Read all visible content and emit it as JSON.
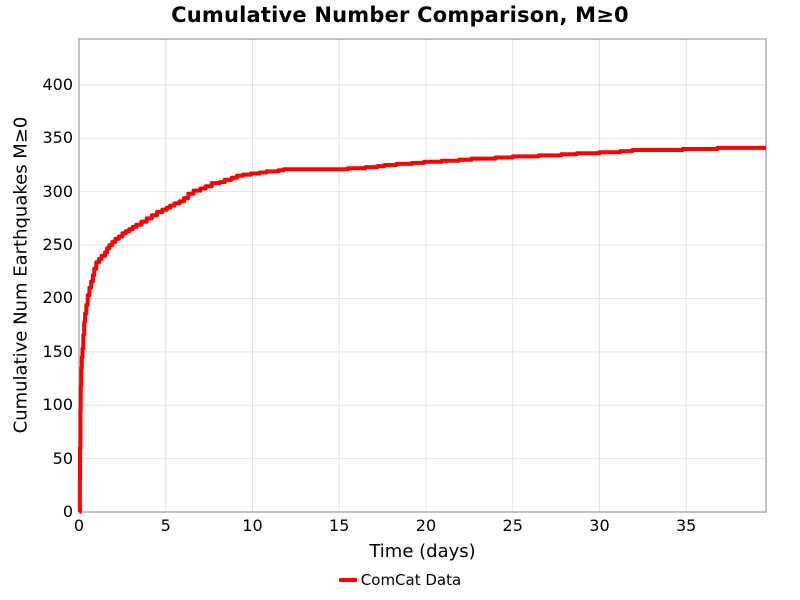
{
  "title": "Cumulative Number Comparison, M≥0",
  "colors": {
    "line": "#ff0000",
    "grid": "#e4e4e4",
    "spine": "#9b9b9b",
    "text": "#000000",
    "background": "#ffffff"
  },
  "chart_data": {
    "type": "line",
    "title": "Cumulative Number Comparison, M≥0",
    "xlabel": "Time (days)",
    "ylabel": "Cumulative Num Earthquakes M≥0",
    "xlim": [
      0,
      39.6
    ],
    "ylim": [
      0,
      443
    ],
    "xticks": [
      0,
      5,
      10,
      15,
      20,
      25,
      30,
      35
    ],
    "yticks": [
      0,
      50,
      100,
      150,
      200,
      250,
      300,
      350,
      400
    ],
    "grid": true,
    "legend_position": "bottom-center",
    "series": [
      {
        "name": "ComCat Data",
        "color": "#ff0000",
        "style": "step-after",
        "line_width": 4,
        "points": [
          [
            0.03,
            0
          ],
          [
            0.05,
            30
          ],
          [
            0.06,
            60
          ],
          [
            0.08,
            95
          ],
          [
            0.1,
            118
          ],
          [
            0.13,
            135
          ],
          [
            0.16,
            145
          ],
          [
            0.2,
            153
          ],
          [
            0.25,
            166
          ],
          [
            0.3,
            178
          ],
          [
            0.35,
            186
          ],
          [
            0.42,
            194
          ],
          [
            0.5,
            203
          ],
          [
            0.6,
            210
          ],
          [
            0.7,
            216
          ],
          [
            0.8,
            222
          ],
          [
            0.88,
            228
          ],
          [
            1.0,
            234
          ],
          [
            1.15,
            237
          ],
          [
            1.3,
            240
          ],
          [
            1.5,
            243
          ],
          [
            1.62,
            247
          ],
          [
            1.75,
            250
          ],
          [
            1.92,
            253
          ],
          [
            2.1,
            256
          ],
          [
            2.3,
            258
          ],
          [
            2.5,
            261
          ],
          [
            2.7,
            263
          ],
          [
            2.9,
            265
          ],
          [
            3.1,
            267
          ],
          [
            3.3,
            269
          ],
          [
            3.6,
            272
          ],
          [
            3.9,
            275
          ],
          [
            4.2,
            278
          ],
          [
            4.5,
            281
          ],
          [
            4.8,
            283
          ],
          [
            5.05,
            285
          ],
          [
            5.25,
            287
          ],
          [
            5.5,
            289
          ],
          [
            5.8,
            291
          ],
          [
            6.05,
            294
          ],
          [
            6.3,
            298
          ],
          [
            6.6,
            301
          ],
          [
            7.0,
            303
          ],
          [
            7.3,
            305
          ],
          [
            7.65,
            308
          ],
          [
            8.1,
            309
          ],
          [
            8.4,
            311
          ],
          [
            8.8,
            313
          ],
          [
            9.1,
            315
          ],
          [
            9.45,
            316
          ],
          [
            9.9,
            317
          ],
          [
            10.4,
            318
          ],
          [
            10.8,
            319
          ],
          [
            11.5,
            320
          ],
          [
            11.8,
            321
          ],
          [
            15.2,
            321
          ],
          [
            15.5,
            322
          ],
          [
            16.5,
            323
          ],
          [
            17.2,
            324
          ],
          [
            17.6,
            325
          ],
          [
            18.3,
            326
          ],
          [
            19.2,
            327
          ],
          [
            19.9,
            328
          ],
          [
            20.9,
            329
          ],
          [
            21.9,
            330
          ],
          [
            22.6,
            331
          ],
          [
            24.0,
            332
          ],
          [
            25.0,
            333
          ],
          [
            26.5,
            334
          ],
          [
            27.8,
            335
          ],
          [
            28.7,
            336
          ],
          [
            30.0,
            337
          ],
          [
            31.2,
            338
          ],
          [
            31.9,
            339
          ],
          [
            34.8,
            340
          ],
          [
            36.8,
            341
          ],
          [
            39.6,
            341
          ]
        ]
      }
    ]
  }
}
